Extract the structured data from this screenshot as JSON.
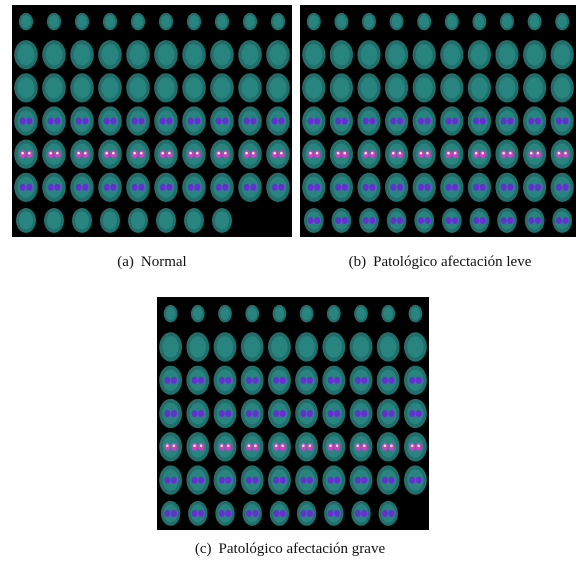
{
  "figures": [
    {
      "label": "(a)",
      "caption": "Normal"
    },
    {
      "label": "(b)",
      "caption": "Patológico afectación leve"
    },
    {
      "label": "(c)",
      "caption": "Patológico afectación grave"
    }
  ]
}
